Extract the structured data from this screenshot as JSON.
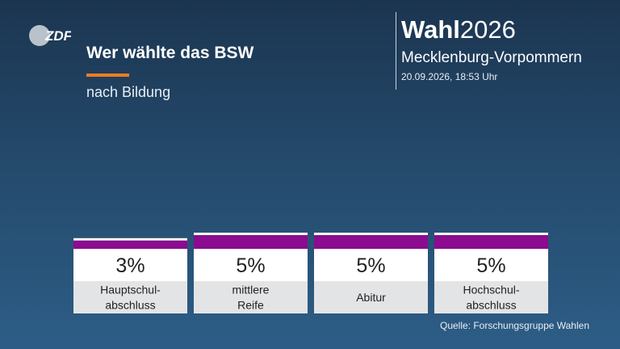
{
  "header": {
    "logo_text": "ZDF",
    "title": "Wer wählte das BSW",
    "subtitle": "nach Bildung",
    "brand_bold": "Wahl",
    "brand_year": "2026",
    "region": "Mecklenburg-Vorpommern",
    "datetime": "20.09.2026, 18:53 Uhr"
  },
  "source": "Quelle: Forschungsgruppe Wahlen",
  "colors": {
    "bar": "#8b0c8f",
    "accent": "#f07d1e"
  },
  "chart_data": {
    "type": "bar",
    "categories": [
      [
        "Hauptschul-",
        "abschluss"
      ],
      [
        "mittlere",
        "Reife"
      ],
      [
        "Abitur"
      ],
      [
        "Hochschul-",
        "abschluss"
      ]
    ],
    "values": [
      3,
      5,
      5,
      5
    ],
    "value_labels": [
      "3%",
      "5%",
      "5%",
      "5%"
    ],
    "unit": "%",
    "ylim": [
      0,
      100
    ],
    "grid": false,
    "legend": "none"
  }
}
